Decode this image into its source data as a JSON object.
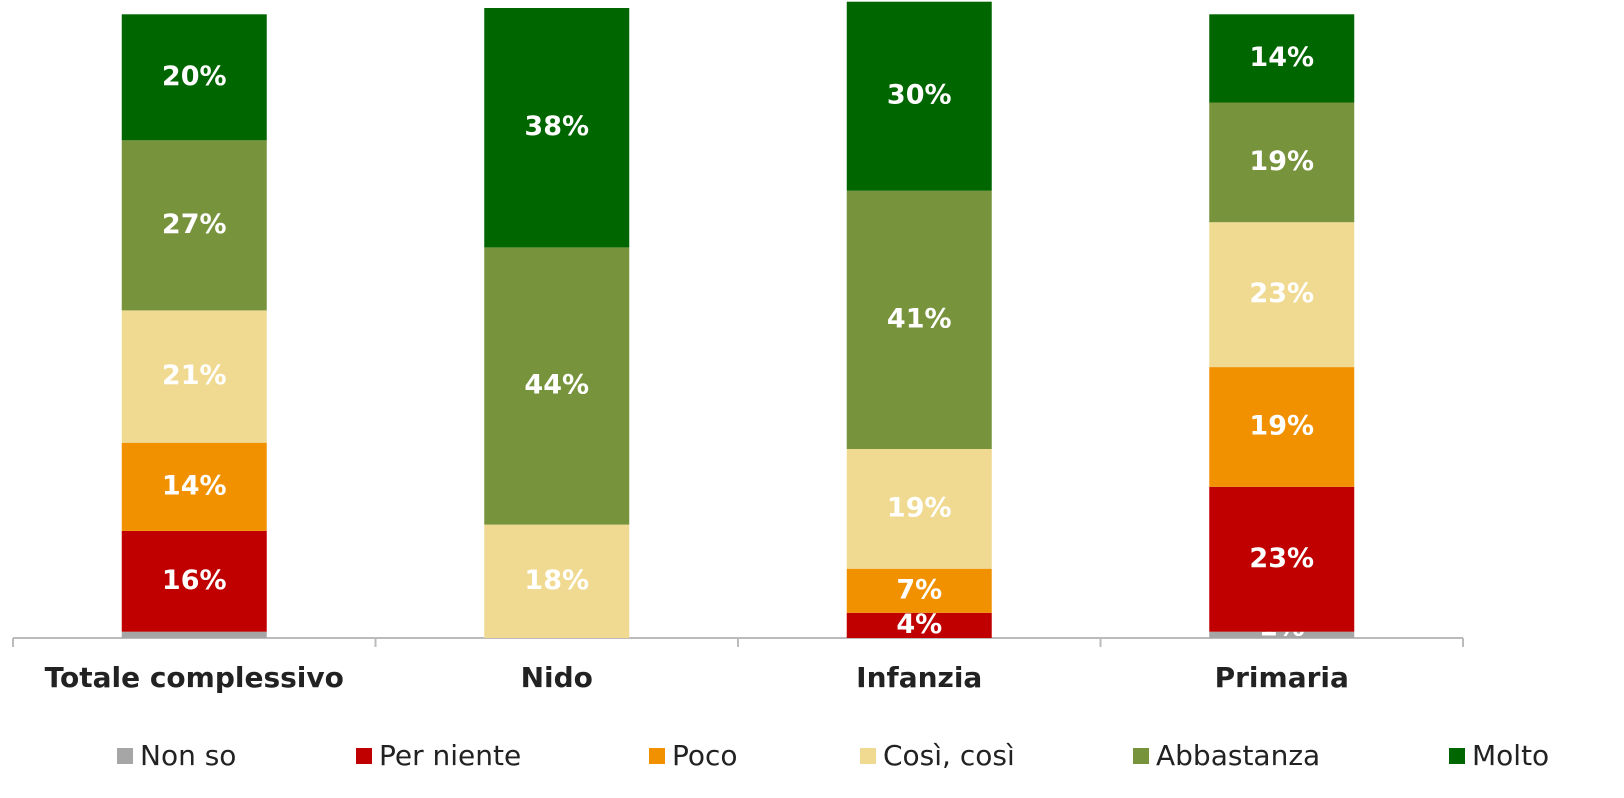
{
  "chart_data": {
    "type": "stacked_bar",
    "categories": [
      "Totale complessivo",
      "Nido",
      "Infanzia",
      "Primaria"
    ],
    "series": [
      {
        "name": "Non so",
        "color": "#a6a6a6",
        "values": [
          1,
          0,
          0,
          1
        ],
        "value_labels": [
          null,
          null,
          null,
          "1%"
        ]
      },
      {
        "name": "Per niente",
        "color": "#c00000",
        "values": [
          16,
          0,
          4,
          23
        ],
        "value_labels": [
          "16%",
          null,
          "4%",
          "23%"
        ]
      },
      {
        "name": "Poco",
        "color": "#f29100",
        "values": [
          14,
          0,
          7,
          19
        ],
        "value_labels": [
          "14%",
          null,
          "7%",
          "19%"
        ]
      },
      {
        "name": "Così, così",
        "color": "#f0da92",
        "values": [
          21,
          18,
          19,
          23
        ],
        "value_labels": [
          "21%",
          "18%",
          "19%",
          "23%"
        ]
      },
      {
        "name": "Abbastanza",
        "color": "#77933c",
        "values": [
          27,
          44,
          41,
          19
        ],
        "value_labels": [
          "27%",
          "44%",
          "41%",
          "19%"
        ]
      },
      {
        "name": "Molto",
        "color": "#006600",
        "values": [
          20,
          38,
          30,
          14
        ],
        "value_labels": [
          "20%",
          "38%",
          "30%",
          "14%"
        ]
      }
    ]
  }
}
